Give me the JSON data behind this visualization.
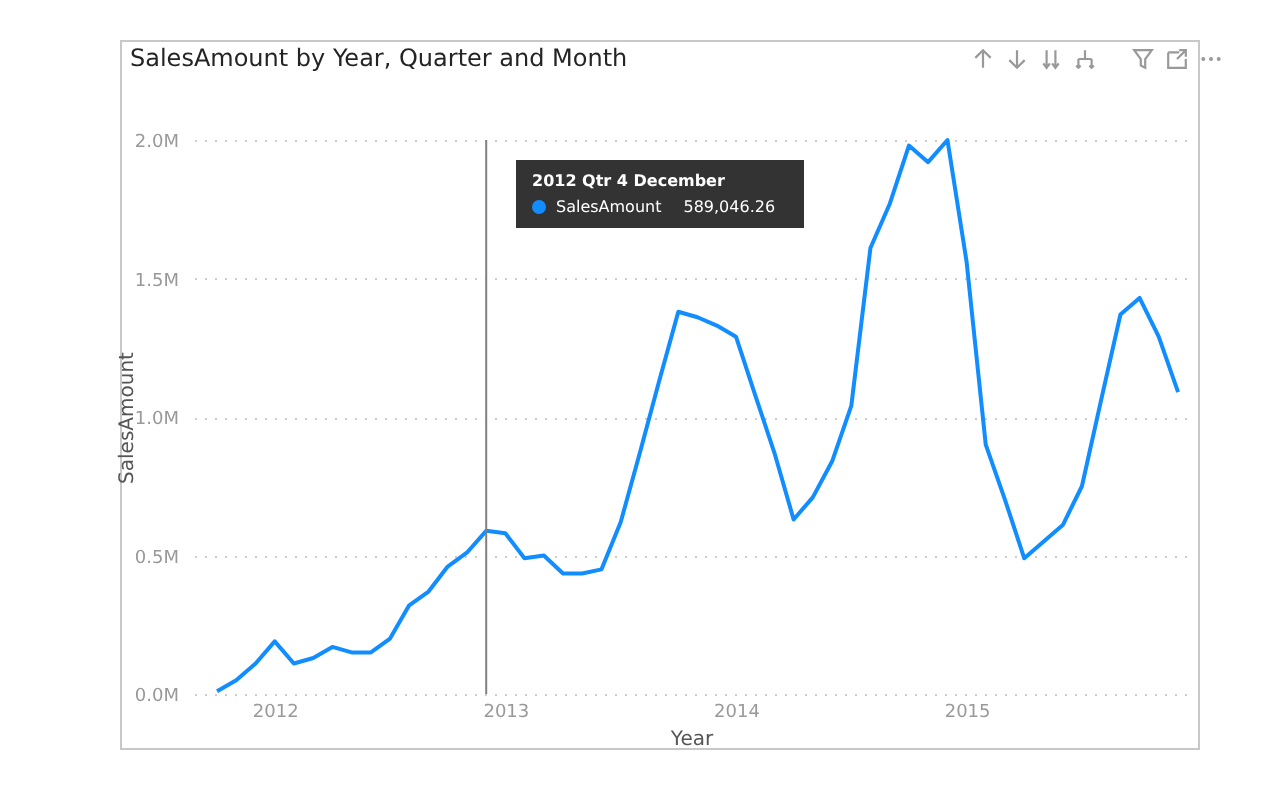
{
  "chart_data": {
    "type": "line",
    "title": "SalesAmount by Year, Quarter and Month",
    "xlabel": "Year",
    "ylabel": "SalesAmount",
    "x": [
      2011.75,
      2011.833,
      2011.917,
      2012.0,
      2012.083,
      2012.167,
      2012.25,
      2012.333,
      2012.417,
      2012.5,
      2012.583,
      2012.667,
      2012.75,
      2012.833,
      2012.917,
      2013.0,
      2013.083,
      2013.167,
      2013.25,
      2013.333,
      2013.417,
      2013.5,
      2013.583,
      2013.667,
      2013.75,
      2013.833,
      2013.917,
      2014.0,
      2014.083,
      2014.167,
      2014.25,
      2014.333,
      2014.417,
      2014.5,
      2014.583,
      2014.667,
      2014.75,
      2014.833,
      2014.917,
      2015.0,
      2015.083,
      2015.167,
      2015.25,
      2015.333,
      2015.417,
      2015.5,
      2015.583,
      2015.667,
      2015.75,
      2015.833,
      2015.917
    ],
    "series": [
      {
        "color": "#118dff",
        "values": [
          0.01,
          0.05,
          0.11,
          0.19,
          0.11,
          0.13,
          0.17,
          0.15,
          0.15,
          0.2,
          0.32,
          0.37,
          0.46,
          0.51,
          0.589,
          0.58,
          0.49,
          0.5,
          0.435,
          0.435,
          0.45,
          0.62,
          0.87,
          1.13,
          1.38,
          1.36,
          1.33,
          1.29,
          1.08,
          0.87,
          0.63,
          0.71,
          0.84,
          1.04,
          1.61,
          1.77,
          1.98,
          1.92,
          2.0,
          1.56,
          0.9,
          0.7,
          0.49,
          0.55,
          0.61,
          0.75,
          1.06,
          1.37,
          1.43,
          1.29,
          1.09
        ]
      }
    ],
    "xlim": [
      2011.65,
      2015.96
    ],
    "xticks": [
      2012,
      2013,
      2014,
      2015
    ],
    "ylim": [
      0,
      2
    ],
    "yticks": [
      {
        "value": 0,
        "label": "0.0M"
      },
      {
        "value": 0.5,
        "label": "0.5M"
      },
      {
        "value": 1,
        "label": "1.0M"
      },
      {
        "value": 1.5,
        "label": "1.5M"
      },
      {
        "value": 2,
        "label": "2.0M"
      }
    ],
    "grid": "y",
    "marker": "none",
    "line_style": "solid",
    "ref_lines": [
      {
        "axis": "x",
        "value": 2012.917,
        "color": "#808080"
      }
    ],
    "annotations": [
      "2012 Qtr 4 December",
      "SalesAmount",
      "589,046.26"
    ]
  }
}
